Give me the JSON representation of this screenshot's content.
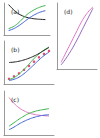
{
  "chart_data": [
    {
      "type": "line",
      "title": "(a)",
      "xlim": [
        0,
        10
      ],
      "ylim": [
        0,
        10
      ],
      "tick_labels": false,
      "grid": false,
      "x": [
        1,
        2,
        3,
        4,
        5,
        6,
        7,
        8,
        9
      ],
      "series": [
        {
          "color": "#222222",
          "values": [
            9.5,
            8,
            6.8,
            6,
            5.5,
            5.2,
            5,
            4.9,
            4.8
          ]
        },
        {
          "color": "#3cb44b",
          "values": [
            2,
            2.6,
            3.6,
            5,
            6.4,
            7.4,
            8.2,
            8.8,
            9.2
          ]
        },
        {
          "color": "#4363d8",
          "values": [
            1.4,
            1.9,
            2.7,
            3.7,
            4.8,
            5.8,
            6.6,
            7.2,
            7.6
          ]
        }
      ]
    },
    {
      "type": "line",
      "title": "(d)",
      "xlim": [
        0,
        10
      ],
      "ylim": [
        0,
        10
      ],
      "tick_labels": false,
      "grid": false,
      "x": [
        1,
        2,
        3,
        4,
        5,
        6,
        7,
        8,
        9
      ],
      "series": [
        {
          "color": "#e377c2",
          "values": [
            1,
            2.2,
            3.4,
            4.6,
            5.8,
            7,
            8,
            8.8,
            9.4
          ]
        },
        {
          "color": "#9467bd",
          "values": [
            0.6,
            1.4,
            2.3,
            3.3,
            4.4,
            5.6,
            6.8,
            8,
            9.2
          ]
        }
      ]
    },
    {
      "type": "line",
      "title": "(b)",
      "xlim": [
        0,
        10
      ],
      "ylim": [
        0,
        10
      ],
      "tick_labels": false,
      "grid": false,
      "x": [
        1,
        2,
        3,
        4,
        5,
        6,
        7,
        8,
        9
      ],
      "series": [
        {
          "color": "#3cb44b",
          "values": [
            1,
            1.5,
            2.3,
            3.4,
            4.6,
            5.9,
            7,
            7.9,
            8.6
          ]
        },
        {
          "color": "#4363d8",
          "values": [
            0.8,
            1.1,
            1.6,
            2.4,
            3.4,
            4.5,
            5.6,
            6.6,
            7.4
          ]
        },
        {
          "color": "#222222",
          "values": [
            5,
            5.1,
            5.3,
            5.6,
            6,
            6.5,
            7.1,
            7.8,
            8.5
          ]
        },
        {
          "type": "scatter",
          "color": "#e6194b",
          "values": [
            1.2,
            1.8,
            2.5,
            3.3,
            4.2,
            5.2,
            6.2,
            7,
            7.7
          ]
        }
      ]
    },
    {
      "type": "line",
      "title": "(c)",
      "xlim": [
        0,
        10
      ],
      "ylim": [
        0,
        10
      ],
      "tick_labels": false,
      "grid": false,
      "x": [
        1,
        2,
        3,
        4,
        5,
        6,
        7,
        8,
        9
      ],
      "series": [
        {
          "color": "#e377c2",
          "values": [
            8.5,
            7.2,
            6.2,
            5.5,
            5,
            4.7,
            4.5,
            4.4,
            4.3
          ]
        },
        {
          "color": "#3cb44b",
          "values": [
            2,
            2.8,
            3.6,
            4.3,
            4.9,
            5.3,
            5.6,
            5.8,
            6
          ]
        },
        {
          "color": "#4363d8",
          "values": [
            1.2,
            1.8,
            2.5,
            3.1,
            3.6,
            4,
            4.3,
            4.5,
            4.6
          ]
        }
      ]
    }
  ]
}
